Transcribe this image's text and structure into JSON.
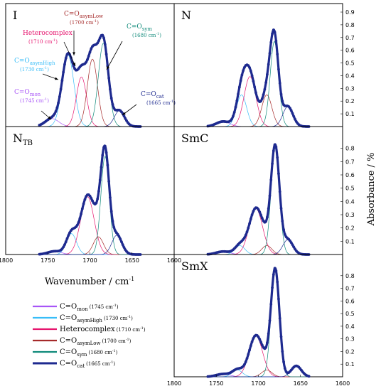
{
  "chart_data": {
    "type": "line",
    "xlabel": "Wavenumber / cm",
    "xlabel_sup": "-1",
    "ylabel": "Absorbance / %",
    "xlim": [
      1800,
      1600
    ],
    "ylim": [
      0,
      0.9
    ],
    "x_ticks": [
      1800,
      1750,
      1700,
      1650,
      1600
    ],
    "y_ticks_top": [
      0.1,
      0.2,
      0.3,
      0.4,
      0.5,
      0.6,
      0.7,
      0.8,
      0.9
    ],
    "y_ticks_lower": [
      0.1,
      0.2,
      0.3,
      0.4,
      0.5,
      0.6,
      0.7,
      0.8
    ],
    "component_colors": {
      "mon": "#a855f7",
      "asymHigh": "#38bdf8",
      "hetero": "#e6156e",
      "asymLow": "#a52a2a",
      "sym": "#0f8a7a",
      "cat": "#1e2a8f"
    },
    "panels": [
      {
        "label": "I",
        "sub": "",
        "x_range": [
          1760,
          1640
        ],
        "total_peak": 0.72,
        "components": [
          {
            "key": "mon",
            "center": 1745,
            "height": 0.04,
            "width": 8
          },
          {
            "key": "asymHigh",
            "center": 1726,
            "height": 0.36,
            "width": 7
          },
          {
            "key": "hetero",
            "center": 1710,
            "height": 0.25,
            "width": 6
          },
          {
            "key": "asymLow",
            "center": 1697,
            "height": 0.34,
            "width": 6
          },
          {
            "key": "sym",
            "center": 1684,
            "height": 0.42,
            "width": 6
          },
          {
            "key": "cat",
            "center": 1665,
            "height": 0.08,
            "width": 6
          }
        ]
      },
      {
        "label": "N",
        "sub": "",
        "x_range": [
          1760,
          1640
        ],
        "total_peak": 0.76,
        "components": [
          {
            "key": "mon",
            "center": 1742,
            "height": 0.03,
            "width": 8
          },
          {
            "key": "asymHigh",
            "center": 1720,
            "height": 0.19,
            "width": 6
          },
          {
            "key": "hetero",
            "center": 1710,
            "height": 0.3,
            "width": 7
          },
          {
            "key": "asymLow",
            "center": 1690,
            "height": 0.19,
            "width": 6
          },
          {
            "key": "sym",
            "center": 1681,
            "height": 0.51,
            "width": 5
          },
          {
            "key": "cat",
            "center": 1665,
            "height": 0.12,
            "width": 6
          }
        ]
      },
      {
        "label": "N",
        "sub": "TB",
        "x_range": [
          1760,
          1640
        ],
        "total_peak": 0.82,
        "components": [
          {
            "key": "mon",
            "center": 1742,
            "height": 0.02,
            "width": 8
          },
          {
            "key": "asymHigh",
            "center": 1722,
            "height": 0.13,
            "width": 6
          },
          {
            "key": "hetero",
            "center": 1703,
            "height": 0.36,
            "width": 8
          },
          {
            "key": "asymLow",
            "center": 1690,
            "height": 0.11,
            "width": 6
          },
          {
            "key": "sym",
            "center": 1682,
            "height": 0.61,
            "width": 5
          },
          {
            "key": "cat",
            "center": 1668,
            "height": 0.12,
            "width": 6
          }
        ]
      },
      {
        "label": "SmC",
        "sub": "",
        "x_range": [
          1760,
          1640
        ],
        "total_peak": 0.83,
        "components": [
          {
            "key": "mon",
            "center": 1742,
            "height": 0.02,
            "width": 8
          },
          {
            "key": "asymHigh",
            "center": 1722,
            "height": 0.06,
            "width": 6
          },
          {
            "key": "hetero",
            "center": 1703,
            "height": 0.31,
            "width": 8
          },
          {
            "key": "asymLow",
            "center": 1690,
            "height": 0.06,
            "width": 6
          },
          {
            "key": "sym",
            "center": 1680,
            "height": 0.72,
            "width": 5
          },
          {
            "key": "cat",
            "center": 1665,
            "height": 0.1,
            "width": 6
          }
        ]
      },
      {
        "label": "SmX",
        "sub": "",
        "x_range": [
          1760,
          1640
        ],
        "total_peak": 0.86,
        "components": [
          {
            "key": "mon",
            "center": 1742,
            "height": 0.02,
            "width": 8
          },
          {
            "key": "asymHigh",
            "center": 1725,
            "height": 0.05,
            "width": 6
          },
          {
            "key": "hetero",
            "center": 1703,
            "height": 0.3,
            "width": 8
          },
          {
            "key": "asymLow",
            "center": 1690,
            "height": 0.05,
            "width": 6
          },
          {
            "key": "sym",
            "center": 1680,
            "height": 0.78,
            "width": 5
          },
          {
            "key": "cat",
            "center": 1655,
            "height": 0.08,
            "width": 6
          }
        ]
      }
    ],
    "annotations": [
      {
        "color": "#a52a2a",
        "main": "C=O",
        "sub": "asymLow",
        "wn": "(1700 cm",
        "sup": "-1",
        "close": ")"
      },
      {
        "color": "#0f8a7a",
        "main": "C=O",
        "sub": "sym",
        "wn": "(1680 cm",
        "sup": "-1",
        "close": ")"
      },
      {
        "color": "#e6156e",
        "main": "Heterocomplex",
        "sub": "",
        "wn": "(1710 cm",
        "sup": "-1",
        "close": ")"
      },
      {
        "color": "#38bdf8",
        "main": "C=O",
        "sub": "asymHigh",
        "wn": "(1730 cm",
        "sup": "-1",
        "close": ")"
      },
      {
        "color": "#a855f7",
        "main": "C=O",
        "sub": "mon",
        "wn": "(1745 cm",
        "sup": "-1",
        "close": ")"
      },
      {
        "color": "#1e2a8f",
        "main": "C=O",
        "sub": "cat",
        "wn": "(1665 cm",
        "sup": "-1",
        "close": ")"
      }
    ],
    "legend": [
      {
        "key": "mon",
        "main": "C=O",
        "sub": "mon",
        "wn": "(1745 cm",
        "sup": "-1",
        "close": ")"
      },
      {
        "key": "asymHigh",
        "main": "C=O",
        "sub": "asymHigh",
        "wn": "(1730 cm",
        "sup": "-1",
        "close": ")"
      },
      {
        "key": "hetero",
        "main": "Heterocomplex",
        "sub": "",
        "wn": "(1710 cm",
        "sup": "-1",
        "close": ")"
      },
      {
        "key": "asymLow",
        "main": "C=O",
        "sub": "asymLow",
        "wn": "(1700 cm",
        "sup": "-1",
        "close": ")"
      },
      {
        "key": "sym",
        "main": "C=O",
        "sub": "sym",
        "wn": "(1680 cm",
        "sup": "-1",
        "close": ")"
      },
      {
        "key": "cat",
        "main": "C=O",
        "sub": "cat",
        "wn": "(1665 cm",
        "sup": "-1",
        "close": ")"
      }
    ]
  }
}
